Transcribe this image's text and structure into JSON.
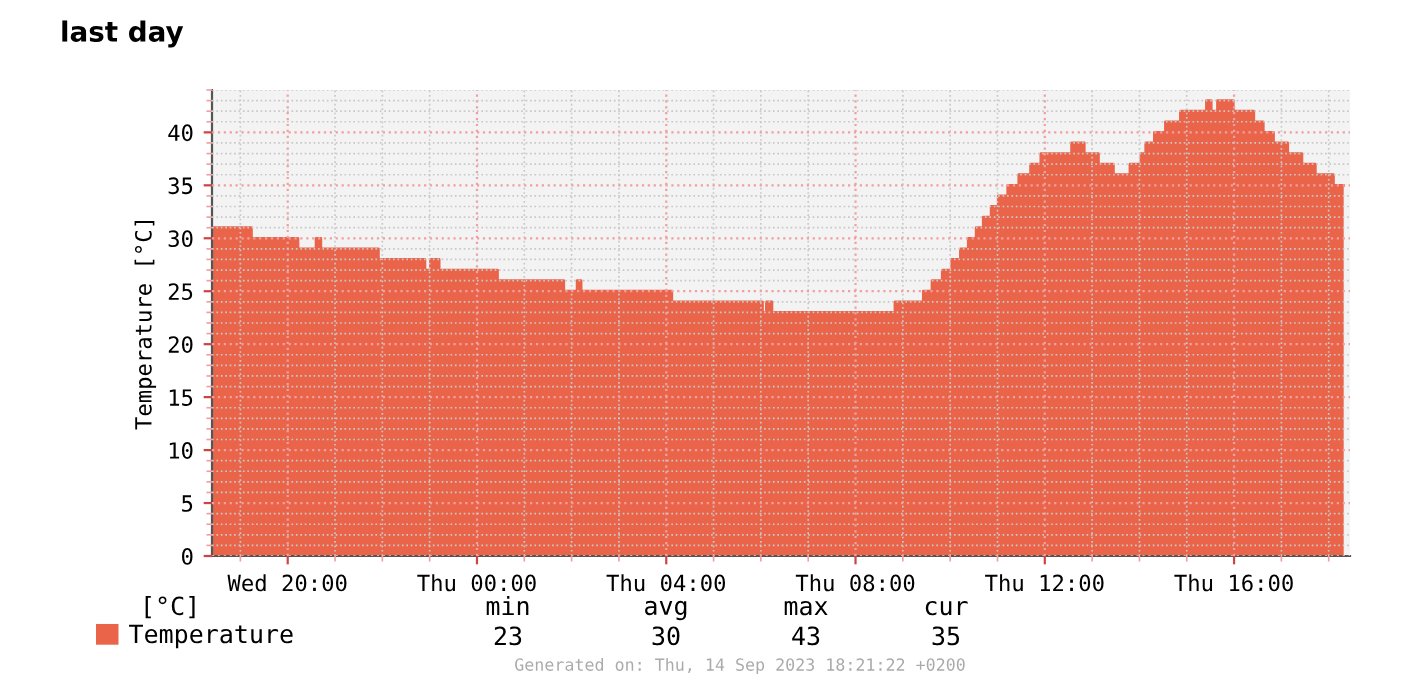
{
  "chart_data": {
    "type": "area",
    "title": "last day",
    "ylabel": "Temperature [°C]",
    "x": [
      "2023-09-13T18:25",
      "2023-09-13T19:14",
      "2023-09-13T19:14",
      "2023-09-13T20:13",
      "2023-09-13T20:13",
      "2023-09-13T20:36",
      "2023-09-13T20:36",
      "2023-09-13T20:42",
      "2023-09-13T20:42",
      "2023-09-13T21:55",
      "2023-09-13T21:55",
      "2023-09-13T22:54",
      "2023-09-13T22:54",
      "2023-09-13T23:01",
      "2023-09-13T23:01",
      "2023-09-13T23:12",
      "2023-09-13T23:12",
      "2023-09-14T00:26",
      "2023-09-14T00:26",
      "2023-09-14T01:50",
      "2023-09-14T01:50",
      "2023-09-14T02:07",
      "2023-09-14T02:07",
      "2023-09-14T02:12",
      "2023-09-14T02:12",
      "2023-09-14T04:07",
      "2023-09-14T04:07",
      "2023-09-14T06:02",
      "2023-09-14T06:02",
      "2023-09-14T06:07",
      "2023-09-14T06:07",
      "2023-09-14T06:14",
      "2023-09-14T06:14",
      "2023-09-14T08:50",
      "2023-09-14T08:50",
      "2023-09-14T09:26",
      "2023-09-14T09:26",
      "2023-09-14T09:37",
      "2023-09-14T09:37",
      "2023-09-14T09:50",
      "2023-09-14T09:50",
      "2023-09-14T10:02",
      "2023-09-14T10:02",
      "2023-09-14T10:13",
      "2023-09-14T10:13",
      "2023-09-14T10:23",
      "2023-09-14T10:23",
      "2023-09-14T10:33",
      "2023-09-14T10:33",
      "2023-09-14T10:42",
      "2023-09-14T10:42",
      "2023-09-14T10:52",
      "2023-09-14T10:52",
      "2023-09-14T11:01",
      "2023-09-14T11:01",
      "2023-09-14T11:13",
      "2023-09-14T11:13",
      "2023-09-14T11:27",
      "2023-09-14T11:27",
      "2023-09-14T11:42",
      "2023-09-14T11:42",
      "2023-09-14T11:55",
      "2023-09-14T11:55",
      "2023-09-14T12:34",
      "2023-09-14T12:34",
      "2023-09-14T12:50",
      "2023-09-14T12:50",
      "2023-09-14T13:08",
      "2023-09-14T13:08",
      "2023-09-14T13:27",
      "2023-09-14T13:27",
      "2023-09-14T13:48",
      "2023-09-14T13:48",
      "2023-09-14T14:02",
      "2023-09-14T14:02",
      "2023-09-14T14:08",
      "2023-09-14T14:08",
      "2023-09-14T14:19",
      "2023-09-14T14:19",
      "2023-09-14T14:33",
      "2023-09-14T14:33",
      "2023-09-14T14:52",
      "2023-09-14T14:52",
      "2023-09-14T15:25",
      "2023-09-14T15:25",
      "2023-09-14T15:31",
      "2023-09-14T15:31",
      "2023-09-14T15:39",
      "2023-09-14T15:39",
      "2023-09-14T15:59",
      "2023-09-14T15:59",
      "2023-09-14T16:25",
      "2023-09-14T16:25",
      "2023-09-14T16:37",
      "2023-09-14T16:37",
      "2023-09-14T16:50",
      "2023-09-14T16:50",
      "2023-09-14T17:08",
      "2023-09-14T17:08",
      "2023-09-14T17:26",
      "2023-09-14T17:26",
      "2023-09-14T17:43",
      "2023-09-14T17:43",
      "2023-09-14T18:06",
      "2023-09-14T18:06",
      "2023-09-14T18:19"
    ],
    "series": [
      {
        "name": "Temperature",
        "color": "#ea644a",
        "values": [
          31,
          31,
          30,
          30,
          29,
          29,
          30,
          30,
          29,
          29,
          28,
          28,
          27,
          27,
          28,
          28,
          27,
          27,
          26,
          26,
          25,
          25,
          26,
          26,
          25,
          25,
          24,
          24,
          23,
          23,
          24,
          24,
          23,
          23,
          24,
          24,
          25,
          25,
          26,
          26,
          27,
          27,
          28,
          28,
          29,
          29,
          30,
          30,
          31,
          31,
          32,
          32,
          33,
          33,
          34,
          34,
          35,
          35,
          36,
          36,
          37,
          37,
          38,
          38,
          39,
          39,
          38,
          38,
          37,
          37,
          36,
          36,
          37,
          37,
          38,
          38,
          39,
          39,
          40,
          40,
          41,
          41,
          42,
          42,
          43,
          43,
          42,
          42,
          43,
          43,
          42,
          42,
          41,
          41,
          40,
          40,
          39,
          39,
          38,
          38,
          37,
          37,
          36,
          36,
          35,
          35
        ]
      }
    ],
    "xlim": [
      "2023-09-13T18:24",
      "2023-09-14T18:27"
    ],
    "ylim": [
      0,
      44
    ],
    "xticks": [
      {
        "value": "2023-09-13T20:00",
        "label": "Wed 20:00"
      },
      {
        "value": "2023-09-14T00:00",
        "label": "Thu 00:00"
      },
      {
        "value": "2023-09-14T04:00",
        "label": "Thu 04:00"
      },
      {
        "value": "2023-09-14T08:00",
        "label": "Thu 08:00"
      },
      {
        "value": "2023-09-14T12:00",
        "label": "Thu 12:00"
      },
      {
        "value": "2023-09-14T16:00",
        "label": "Thu 16:00"
      }
    ],
    "yticks": [
      0,
      5,
      10,
      15,
      20,
      25,
      30,
      35,
      40
    ],
    "grid": true,
    "legend": "bottom left",
    "annotations": [
      "[°C]",
      "min",
      "avg",
      "max",
      "cur",
      "23",
      "30",
      "43",
      "35",
      "Generated on: Thu, 14 Sep 2023 18:21:22 +0200"
    ]
  }
}
